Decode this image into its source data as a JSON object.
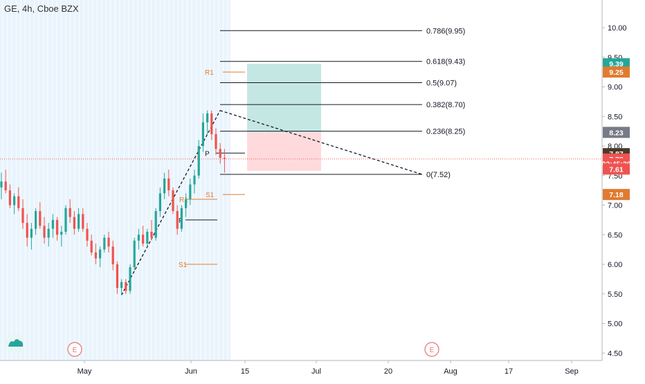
{
  "header": {
    "title": "GE, 4h, Cboe BZX"
  },
  "colors": {
    "up": "#26a69a",
    "down": "#ef5350",
    "pivot": "#e07b30",
    "session_band": "#cfe7fa",
    "profit": "#b2dfdb",
    "loss": "#ffcdd2",
    "last_price_line": "#ef5350"
  },
  "icons": {
    "logo": "tradingview-cloud-icon",
    "earnings": "earnings-marker-icon"
  },
  "chart_data": {
    "type": "candlestick",
    "title": "GE, 4h, Cboe BZX",
    "ylim": [
      4.5,
      10.0
    ],
    "y_ticks": [
      "10.00",
      "9.50",
      "9.00",
      "8.50",
      "8.00",
      "7.50",
      "7.00",
      "6.50",
      "6.00",
      "5.50",
      "5.00",
      "4.50"
    ],
    "x_ticks": [
      "May",
      "Jun",
      "15",
      "Jul",
      "20",
      "Aug",
      "17",
      "Sep"
    ],
    "fibonacci": [
      {
        "level": "0.786",
        "value": 9.95,
        "label": "0.786(9.95)"
      },
      {
        "level": "0.618",
        "value": 9.43,
        "label": "0.618(9.43)"
      },
      {
        "level": "0.5",
        "value": 9.07,
        "label": "0.5(9.07)"
      },
      {
        "level": "0.382",
        "value": 8.7,
        "label": "0.382(8.70)"
      },
      {
        "level": "0.236",
        "value": 8.25,
        "label": "0.236(8.25)"
      },
      {
        "level": "0",
        "value": 7.52,
        "label": "0(7.52)"
      }
    ],
    "pivots": [
      {
        "label": "R1",
        "value": 9.25
      },
      {
        "label": "P",
        "value": 7.88
      },
      {
        "label": "S1",
        "value": 7.18
      },
      {
        "label": "R1",
        "value": 7.1
      },
      {
        "label": "P",
        "value": 6.75
      },
      {
        "label": "S1",
        "value": 6.0
      }
    ],
    "position": {
      "take_profit": 9.39,
      "entry": 8.23,
      "stop": 7.58
    },
    "price_badges": [
      {
        "label": "9.39",
        "value": 9.39,
        "color": "#26a69a"
      },
      {
        "label": "9.25",
        "value": 9.25,
        "color": "#e07b30"
      },
      {
        "label": "8.23",
        "value": 8.23,
        "color": "#787b86"
      },
      {
        "label": "7.87",
        "value": 7.87,
        "color": "#4a3a2a"
      },
      {
        "label": "7.78",
        "value": 7.78,
        "color": "#ef5350"
      },
      {
        "label": "03:45:36",
        "value": 7.7,
        "color": "#ef5350"
      },
      {
        "label": "7.61",
        "value": 7.61,
        "color": "#ef5350"
      },
      {
        "label": "7.18",
        "value": 7.18,
        "color": "#e07b30"
      }
    ],
    "last_price": 7.78,
    "earnings": [
      {
        "label": "E",
        "date": "late April"
      },
      {
        "label": "E",
        "date": "late July"
      }
    ],
    "candles": [
      [
        7.3,
        7.55,
        7.1,
        7.4
      ],
      [
        7.4,
        7.6,
        7.2,
        7.25
      ],
      [
        7.25,
        7.35,
        6.95,
        7.0
      ],
      [
        7.0,
        7.2,
        6.85,
        7.15
      ],
      [
        7.15,
        7.3,
        6.9,
        6.95
      ],
      [
        6.95,
        7.1,
        6.6,
        6.7
      ],
      [
        6.7,
        6.85,
        6.3,
        6.45
      ],
      [
        6.45,
        6.7,
        6.25,
        6.6
      ],
      [
        6.6,
        6.95,
        6.5,
        6.9
      ],
      [
        6.9,
        7.05,
        6.6,
        6.65
      ],
      [
        6.65,
        6.8,
        6.35,
        6.45
      ],
      [
        6.45,
        6.7,
        6.3,
        6.6
      ],
      [
        6.6,
        6.85,
        6.45,
        6.75
      ],
      [
        6.75,
        6.8,
        6.4,
        6.5
      ],
      [
        6.5,
        6.65,
        6.3,
        6.55
      ],
      [
        6.55,
        7.0,
        6.5,
        6.95
      ],
      [
        6.95,
        7.1,
        6.7,
        6.8
      ],
      [
        6.8,
        6.9,
        6.5,
        6.6
      ],
      [
        6.6,
        6.95,
        6.55,
        6.85
      ],
      [
        6.85,
        6.95,
        6.55,
        6.6
      ],
      [
        6.6,
        6.7,
        6.3,
        6.4
      ],
      [
        6.4,
        6.5,
        6.15,
        6.2
      ],
      [
        6.2,
        6.35,
        6.0,
        6.1
      ],
      [
        6.1,
        6.3,
        5.95,
        6.25
      ],
      [
        6.25,
        6.5,
        6.2,
        6.45
      ],
      [
        6.45,
        6.55,
        6.2,
        6.3
      ],
      [
        6.3,
        6.4,
        5.9,
        6.0
      ],
      [
        6.0,
        6.05,
        5.5,
        5.6
      ],
      [
        5.6,
        5.75,
        5.48,
        5.7
      ],
      [
        5.7,
        5.75,
        5.5,
        5.55
      ],
      [
        5.55,
        6.0,
        5.5,
        5.95
      ],
      [
        5.95,
        6.45,
        5.9,
        6.4
      ],
      [
        6.4,
        6.6,
        6.25,
        6.5
      ],
      [
        6.5,
        6.65,
        6.3,
        6.35
      ],
      [
        6.35,
        6.6,
        6.3,
        6.55
      ],
      [
        6.55,
        6.75,
        6.4,
        6.45
      ],
      [
        6.45,
        6.95,
        6.4,
        6.9
      ],
      [
        6.9,
        7.3,
        6.8,
        7.2
      ],
      [
        7.2,
        7.55,
        7.1,
        7.45
      ],
      [
        7.45,
        7.6,
        7.15,
        7.25
      ],
      [
        7.25,
        7.3,
        6.85,
        6.9
      ],
      [
        6.9,
        7.0,
        6.5,
        6.6
      ],
      [
        6.6,
        7.0,
        6.55,
        6.95
      ],
      [
        6.95,
        7.2,
        6.8,
        7.1
      ],
      [
        7.1,
        7.45,
        7.0,
        7.35
      ],
      [
        7.35,
        7.6,
        7.2,
        7.5
      ],
      [
        7.5,
        8.1,
        7.45,
        8.0
      ],
      [
        8.0,
        8.55,
        7.9,
        8.4
      ],
      [
        8.4,
        8.6,
        8.2,
        8.55
      ],
      [
        8.55,
        8.6,
        8.1,
        8.2
      ],
      [
        8.2,
        8.3,
        7.85,
        7.95
      ],
      [
        7.95,
        8.05,
        7.7,
        7.8
      ],
      [
        7.8,
        7.95,
        7.55,
        7.78
      ]
    ]
  }
}
